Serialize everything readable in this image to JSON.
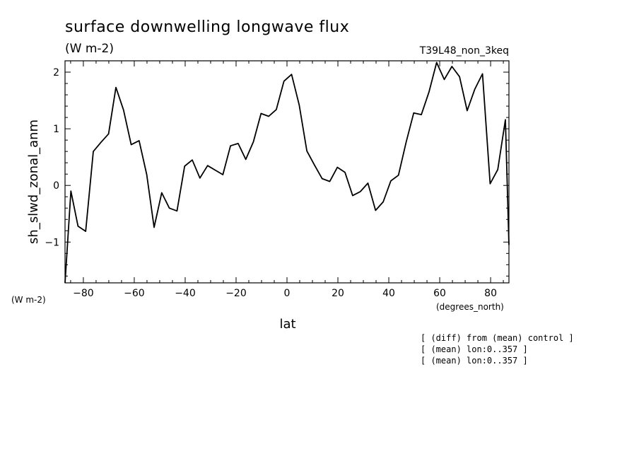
{
  "chart_data": {
    "type": "line",
    "title": "surface downwelling longwave flux",
    "units": "(W m-2)",
    "run_label": "T39L48_non_3keq",
    "ylabel": "sh_slwd_zonal_anm",
    "y_units_label": "(W m-2)",
    "xlabel": "lat",
    "x_units_label": "(degrees_north)",
    "xlim": [
      -87.2,
      87.2
    ],
    "ylim": [
      -1.72,
      2.2
    ],
    "x_ticks": [
      -80,
      -60,
      -40,
      -20,
      0,
      20,
      40,
      60,
      80
    ],
    "x_tick_labels": [
      "-80",
      "-60",
      "-40",
      "-20",
      "0",
      "20",
      "40",
      "60",
      "80"
    ],
    "y_ticks": [
      -1,
      0,
      1,
      2
    ],
    "y_tick_labels": [
      "-1",
      "0",
      "1",
      "2"
    ],
    "notes": [
      "[ (diff) from (mean) control ]",
      "[ (mean) lon:0..357 ]",
      "[ (mean) lon:0..357 ]"
    ],
    "series": [
      {
        "x": [
          -87.2,
          -84.9,
          -82.1,
          -79.1,
          -76.1,
          -73.1,
          -70.1,
          -67.2,
          -64.2,
          -61.2,
          -58.1,
          -55.1,
          -52.2,
          -49.2,
          -46.2,
          -43.2,
          -40.2,
          -37.2,
          -34.2,
          -31.2,
          -28.2,
          -25.2,
          -22.2,
          -19.2,
          -16.2,
          -13.2,
          -10.2,
          -7.2,
          -4.2,
          -1.2,
          1.8,
          4.8,
          7.8,
          10.8,
          13.8,
          16.8,
          19.8,
          22.8,
          25.8,
          28.8,
          31.8,
          34.8,
          37.8,
          40.8,
          43.8,
          46.8,
          49.8,
          52.8,
          55.8,
          58.8,
          61.8,
          64.8,
          67.8,
          70.8,
          73.8,
          76.8,
          79.8,
          82.8,
          85.8,
          87.2
        ],
        "y": [
          -1.72,
          -0.1,
          -0.72,
          -0.81,
          0.6,
          0.76,
          0.91,
          1.73,
          1.33,
          0.72,
          0.79,
          0.19,
          -0.74,
          -0.13,
          -0.4,
          -0.45,
          0.34,
          0.45,
          0.13,
          0.35,
          0.27,
          0.19,
          0.7,
          0.74,
          0.46,
          0.77,
          1.27,
          1.22,
          1.34,
          1.84,
          1.96,
          1.42,
          0.61,
          0.36,
          0.12,
          0.07,
          0.32,
          0.23,
          -0.18,
          -0.11,
          0.04,
          -0.44,
          -0.29,
          0.08,
          0.18,
          0.76,
          1.28,
          1.25,
          1.65,
          2.17,
          1.87,
          2.1,
          1.92,
          1.32,
          1.7,
          1.97,
          0.03,
          0.28,
          1.16,
          -1.05
        ]
      }
    ]
  }
}
